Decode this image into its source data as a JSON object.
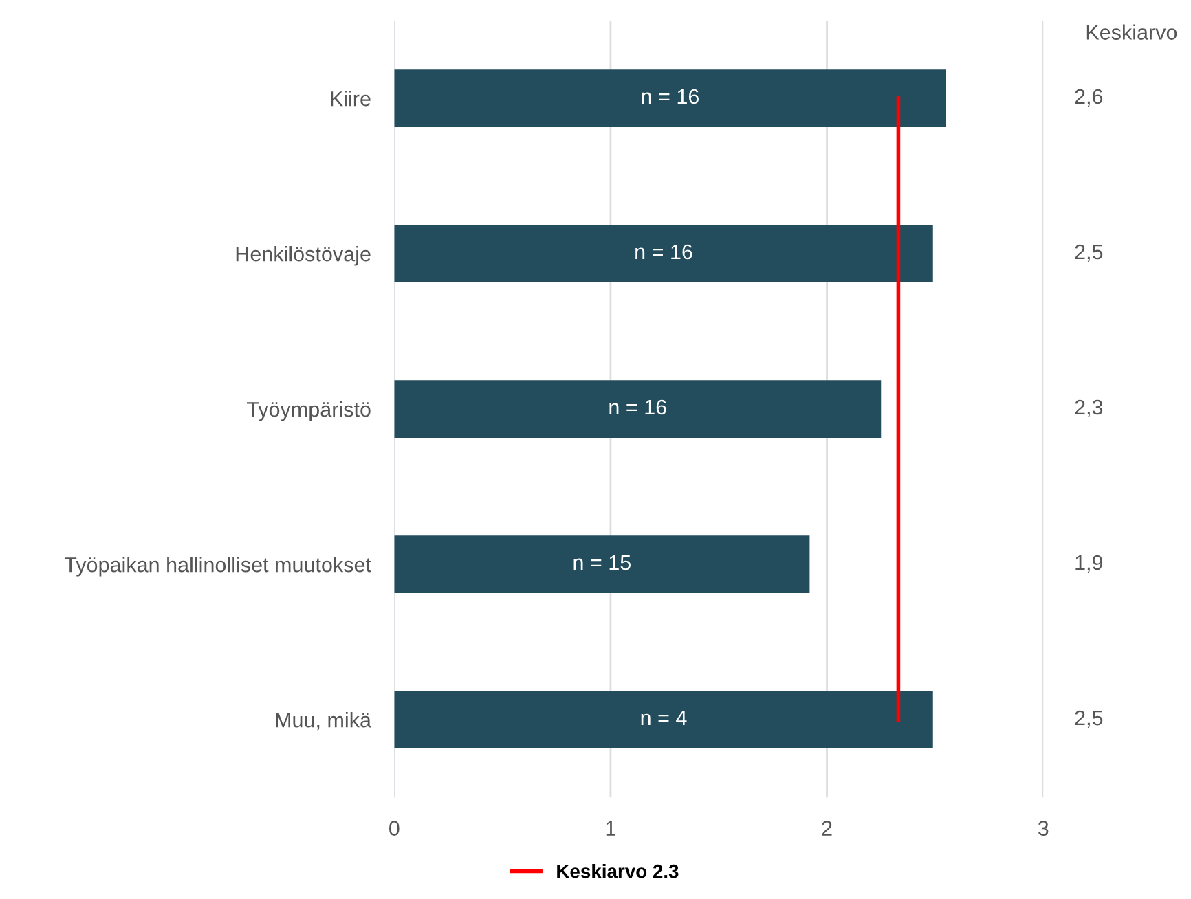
{
  "chart_data": {
    "type": "bar",
    "orientation": "horizontal",
    "categories": [
      "Kiire",
      "Henkilöstövaje",
      "Työympäristö",
      "Työpaikan hallinolliset muutokset",
      "Muu, mikä"
    ],
    "values": [
      2.55,
      2.49,
      2.25,
      1.92,
      2.49
    ],
    "color": "#234d5c",
    "value_labels": [
      "2,6",
      "2,5",
      "2,3",
      "1,9",
      "2,5"
    ],
    "annotations": [
      "Keskiarvo",
      "n = 16",
      "n = 16",
      "n = 16",
      "n = 15",
      "n = 4"
    ],
    "ref_lines": [
      {
        "axis": "x",
        "value": 2.33,
        "label": "Keskiarvo 2.3",
        "color": "#ff0000"
      }
    ],
    "xlim": [
      0,
      3
    ],
    "xticks": [
      0,
      1,
      2,
      3
    ],
    "grid": "x",
    "legend": "bottom"
  }
}
